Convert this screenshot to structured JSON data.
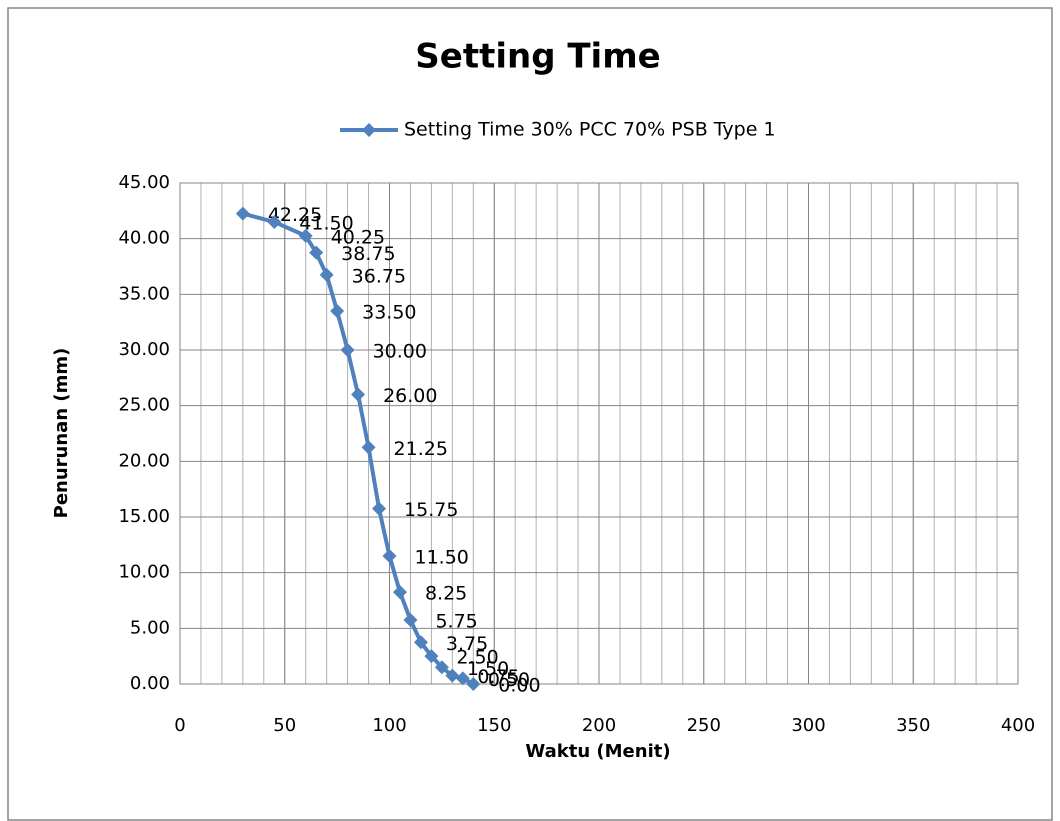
{
  "chart_data": {
    "type": "line",
    "title": "Setting Time",
    "x_label": "Waktu (Menit)",
    "y_label": "Penurunan (mm)",
    "legend": "top",
    "grid": true,
    "minor_grid_step": 10,
    "xlim": [
      0,
      400
    ],
    "xticks": [
      0,
      50,
      100,
      150,
      200,
      250,
      300,
      350,
      400
    ],
    "ylim": [
      0,
      45
    ],
    "yticks": [
      {
        "value": 0,
        "label": "0.00"
      },
      {
        "value": 5,
        "label": "5.00"
      },
      {
        "value": 10,
        "label": "10.00"
      },
      {
        "value": 15,
        "label": "15.00"
      },
      {
        "value": 20,
        "label": "20.00"
      },
      {
        "value": 25,
        "label": "25.00"
      },
      {
        "value": 30,
        "label": "30.00"
      },
      {
        "value": 35,
        "label": "35.00"
      },
      {
        "value": 40,
        "label": "40.00"
      },
      {
        "value": 45,
        "label": "45.00"
      }
    ],
    "x": [
      30,
      45,
      60,
      65,
      70,
      75,
      80,
      85,
      90,
      95,
      100,
      105,
      110,
      115,
      120,
      125,
      130,
      135,
      140
    ],
    "series": [
      {
        "name": "Setting Time 30% PCC 70% PSB Type 1",
        "color": "#4f81bd",
        "values": [
          42.25,
          41.5,
          40.25,
          38.75,
          36.75,
          33.5,
          30,
          26,
          21.25,
          15.75,
          11.5,
          8.25,
          5.75,
          3.75,
          2.5,
          1.5,
          0.75,
          0.5,
          0
        ],
        "value_labels": [
          "42.25",
          "41.50",
          "40.25",
          "38.75",
          "36.75",
          "33.50",
          "30.00",
          "26.00",
          "21.25",
          "15.75",
          "11.50",
          "8.25",
          "5.75",
          "3.75",
          "2.50",
          "1.50",
          "0.75",
          "0.50",
          "0.00"
        ]
      }
    ]
  }
}
